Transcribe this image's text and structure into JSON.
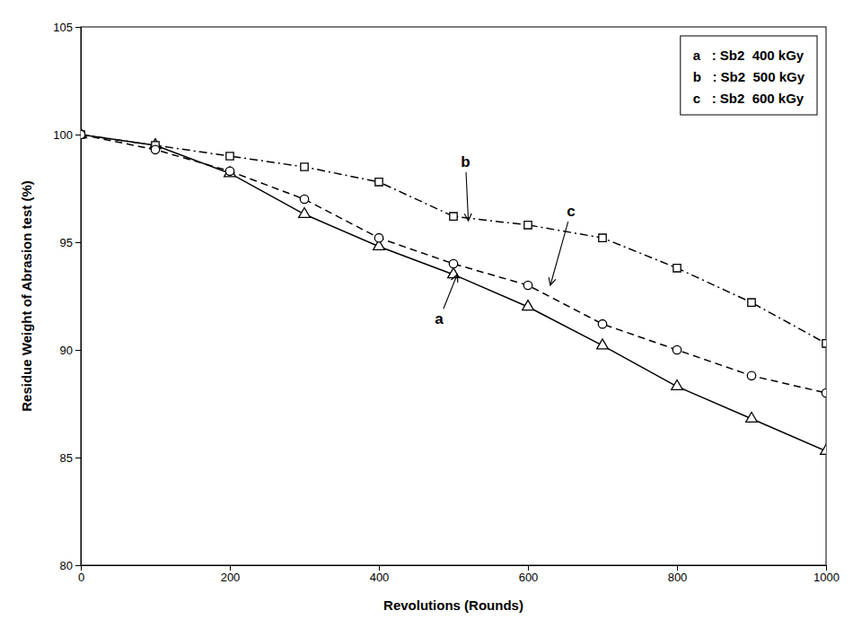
{
  "chart_data": {
    "type": "line",
    "x": [
      0,
      100,
      200,
      300,
      400,
      500,
      600,
      700,
      800,
      900,
      1000
    ],
    "series": [
      {
        "name": "a   : Sb2  400 kGy",
        "color": "#000000",
        "marker": "triangle",
        "line_style": "solid",
        "values": [
          100,
          99.5,
          98.2,
          96.3,
          94.8,
          93.5,
          92.0,
          90.2,
          88.3,
          86.8,
          85.3
        ]
      },
      {
        "name": "b   : Sb2  500 kGy",
        "color": "#000000",
        "marker": "square",
        "line_style": "dashdot",
        "values": [
          100,
          99.5,
          99.0,
          98.5,
          97.8,
          96.2,
          95.8,
          95.2,
          93.8,
          92.2,
          90.3
        ]
      },
      {
        "name": "c   : Sb2  600 kGy",
        "color": "#000000",
        "marker": "circle",
        "line_style": "dashed",
        "values": [
          100,
          99.3,
          98.3,
          97.0,
          95.2,
          94.0,
          93.0,
          91.2,
          90.0,
          88.8,
          88.0
        ]
      }
    ],
    "xlabel": "Revolutions (Rounds)",
    "ylabel": "Residue Weight of Abrasion test (%)",
    "xlim": [
      0,
      1000
    ],
    "ylim": [
      80,
      105
    ],
    "xticks": [
      0,
      200,
      400,
      600,
      800,
      1000
    ],
    "yticks": [
      80,
      85,
      90,
      95,
      100,
      105
    ],
    "grid": false,
    "legend": "upper right",
    "annotations": [
      {
        "text": "a",
        "xy": [
          505,
          93.5
        ],
        "xytext": [
          475,
          91.2
        ]
      },
      {
        "text": "b",
        "xy": [
          520,
          96.0
        ],
        "xytext": [
          510,
          98.5
        ]
      },
      {
        "text": "c",
        "xy": [
          630,
          93.0
        ],
        "xytext": [
          652,
          96.2
        ]
      }
    ]
  }
}
